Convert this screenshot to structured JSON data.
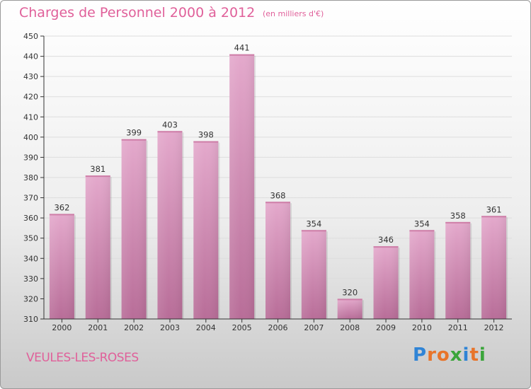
{
  "header": {
    "title": "Charges de Personnel 2000 à 2012",
    "subtitle": "(en milliers d'€)"
  },
  "footer": {
    "town": "VEULES-LES-ROSES",
    "logo_text": "Proxiti",
    "logo_colors": [
      "#2f84d6",
      "#e8742a",
      "#e8742a",
      "#3aa53a",
      "#2f84d6",
      "#e8742a",
      "#3aa53a"
    ]
  },
  "colors": {
    "bar_light": "#e4a9cc",
    "bar_dark": "#b86d98",
    "axis": "#333333",
    "grid": "#dddddd",
    "text": "#e0609a"
  },
  "chart_data": {
    "type": "bar",
    "categories": [
      "2000",
      "2001",
      "2002",
      "2003",
      "2004",
      "2005",
      "2006",
      "2007",
      "2008",
      "2009",
      "2010",
      "2011",
      "2012"
    ],
    "values": [
      362,
      381,
      399,
      403,
      398,
      441,
      368,
      354,
      320,
      346,
      354,
      358,
      361
    ],
    "title": "Charges de Personnel 2000 à 2012",
    "subtitle": "(en milliers d'€)",
    "ylim": [
      310,
      450
    ],
    "yticks": [
      310,
      320,
      330,
      340,
      350,
      360,
      370,
      380,
      390,
      400,
      410,
      420,
      430,
      440,
      450
    ],
    "grid": true,
    "data_labels": true
  }
}
